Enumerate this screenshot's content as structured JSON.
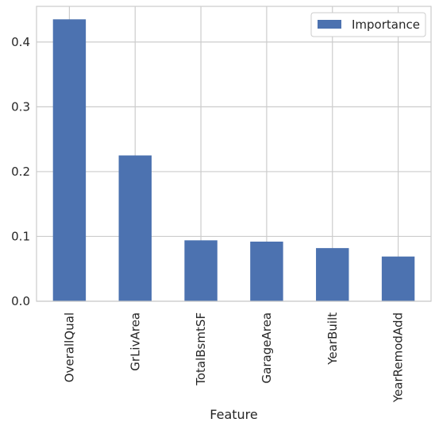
{
  "chart_data": {
    "type": "bar",
    "categories": [
      "OverallQual",
      "GrLivArea",
      "TotalBsmtSF",
      "GarageArea",
      "YearBuilt",
      "YearRemodAdd"
    ],
    "series": [
      {
        "name": "Importance",
        "values": [
          0.435,
          0.225,
          0.094,
          0.092,
          0.082,
          0.069
        ]
      }
    ],
    "xlabel": "Feature",
    "ylabel": "",
    "ylim": [
      0,
      0.455
    ],
    "yticks": [
      0.0,
      0.1,
      0.2,
      0.3,
      0.4
    ],
    "ytick_labels": [
      "0.0",
      "0.1",
      "0.2",
      "0.3",
      "0.4"
    ],
    "grid": true,
    "legend_position": "top-right",
    "colors": {
      "bar": "#4c72b0",
      "grid": "#cccccc",
      "frame": "#cccccc",
      "text": "#262626"
    }
  }
}
